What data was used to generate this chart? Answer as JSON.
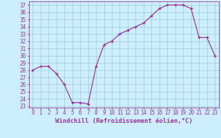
{
  "x": [
    0,
    1,
    2,
    3,
    4,
    5,
    6,
    7,
    8,
    9,
    10,
    11,
    12,
    13,
    14,
    15,
    16,
    17,
    18,
    19,
    20,
    21,
    22,
    23
  ],
  "y": [
    28,
    28.5,
    28.5,
    27.5,
    26,
    23.5,
    23.5,
    23.3,
    28.5,
    31.5,
    32,
    33,
    33.5,
    34,
    34.5,
    35.5,
    36.5,
    37,
    37,
    37,
    36.5,
    32.5,
    32.5,
    30
  ],
  "line_color": "#993399",
  "marker_color": "#993399",
  "bg_color": "#cceeff",
  "grid_color": "#99cccc",
  "xlabel": "Windchill (Refroidissement éolien,°C)",
  "ylim_min": 23,
  "ylim_max": 37,
  "yticks": [
    23,
    24,
    25,
    26,
    27,
    28,
    29,
    30,
    31,
    32,
    33,
    34,
    35,
    36,
    37
  ],
  "xticks": [
    0,
    1,
    2,
    3,
    4,
    5,
    6,
    7,
    8,
    9,
    10,
    11,
    12,
    13,
    14,
    15,
    16,
    17,
    18,
    19,
    20,
    21,
    22,
    23
  ],
  "tick_fontsize": 5.5,
  "xlabel_fontsize": 6.5
}
